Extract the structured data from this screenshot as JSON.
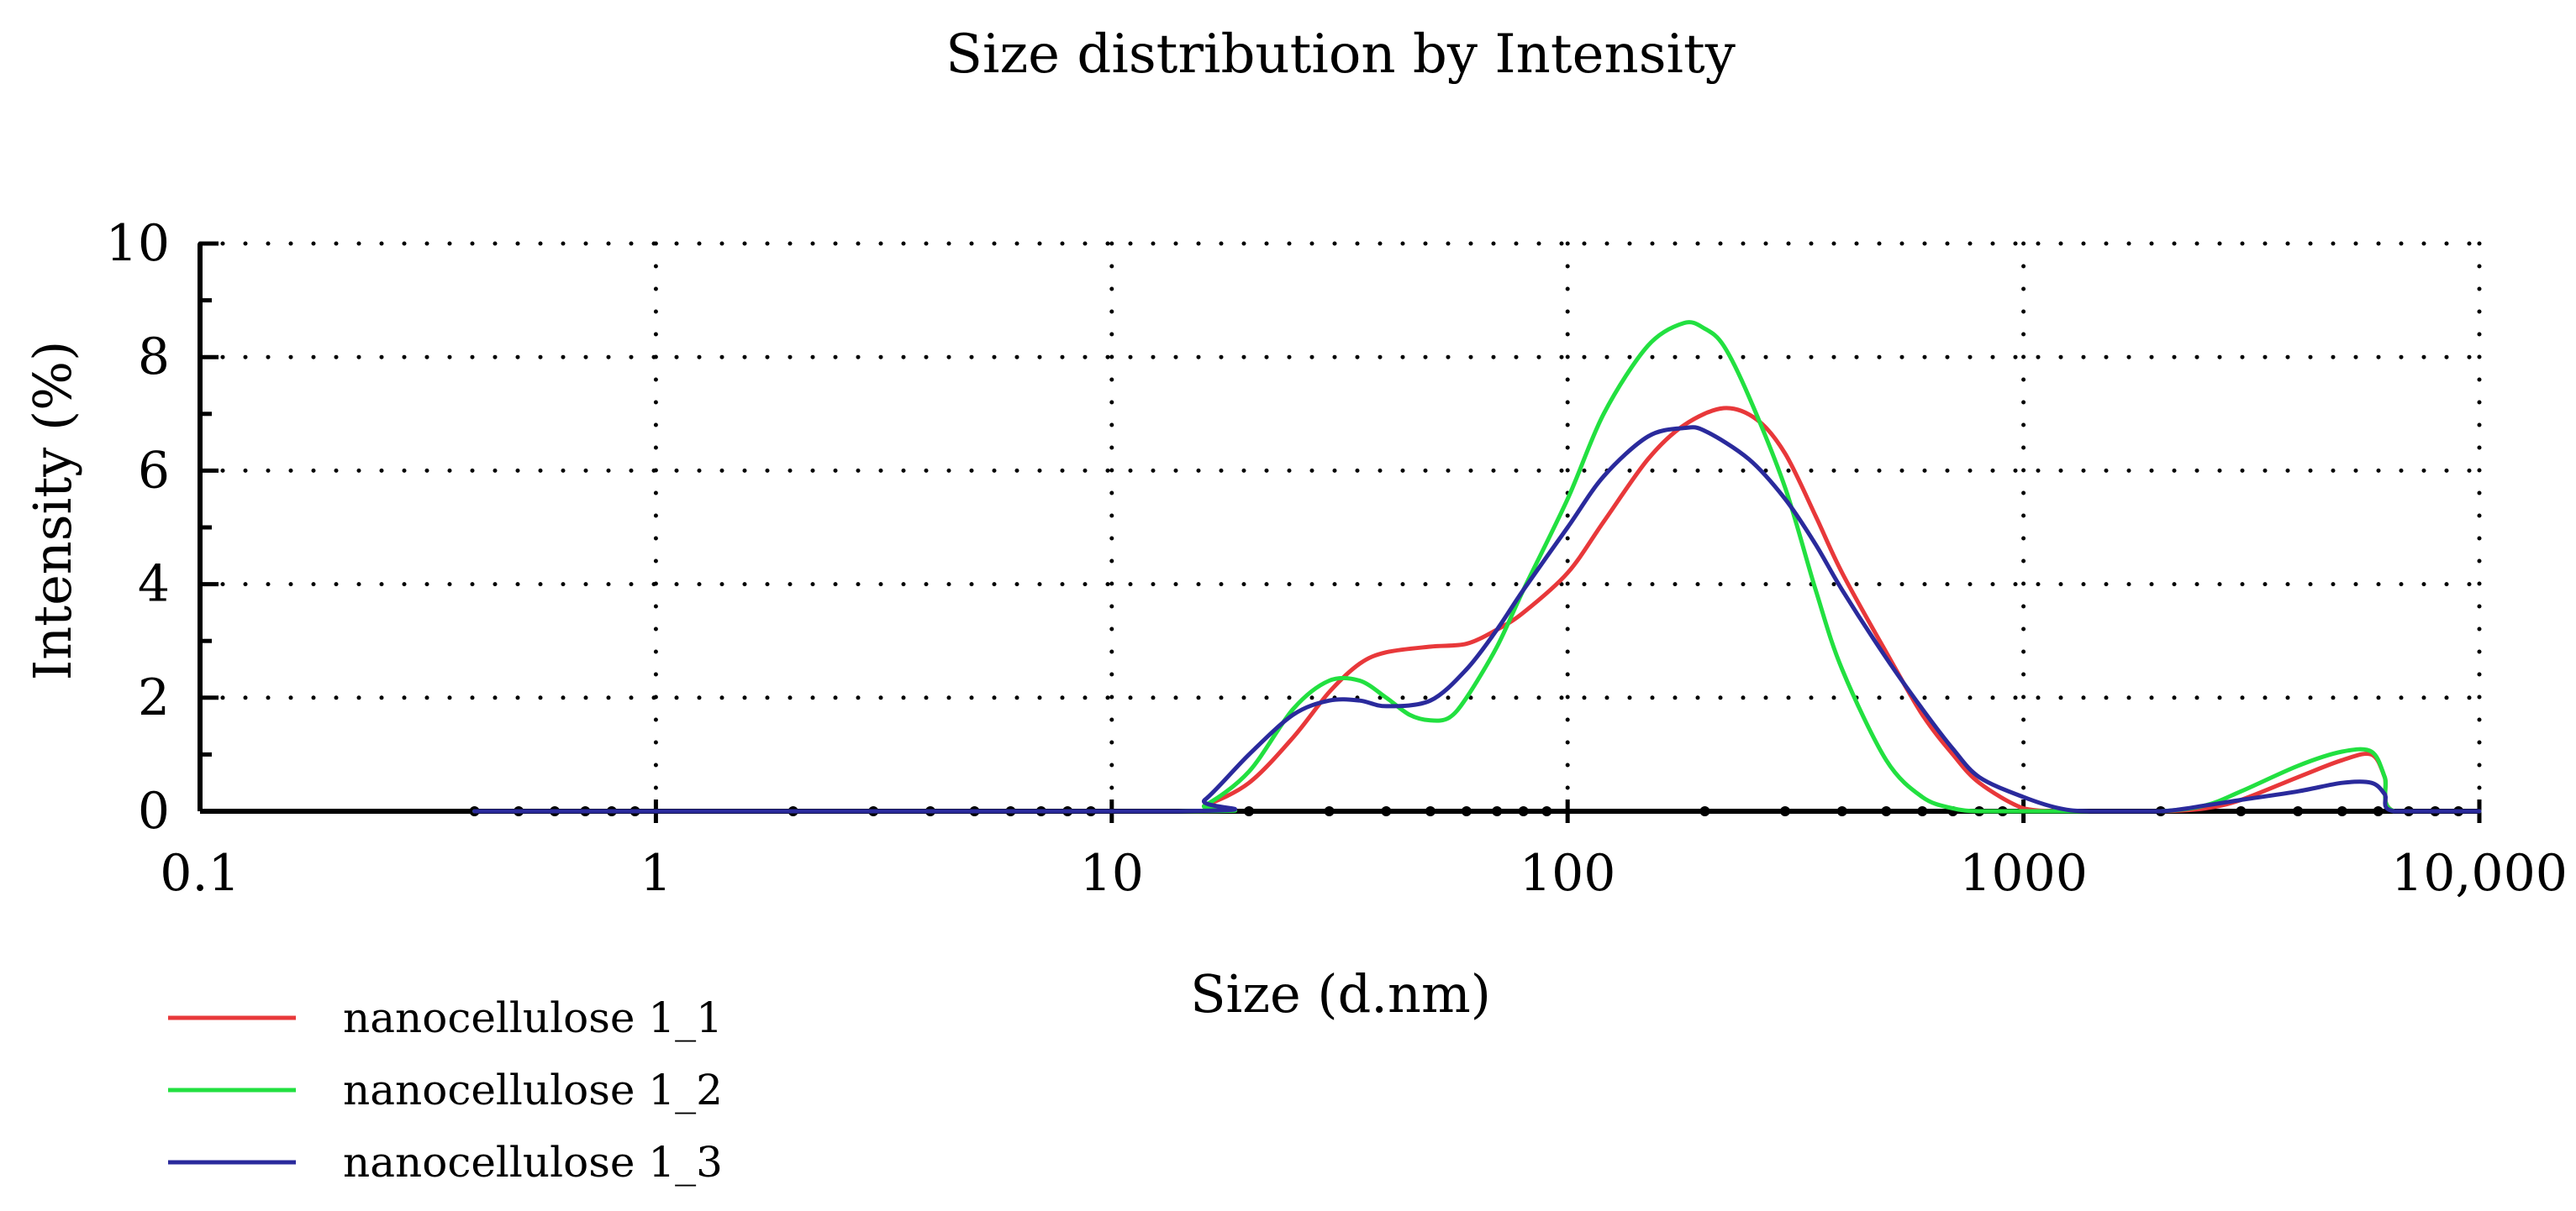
{
  "chart_data": {
    "type": "line",
    "title": "Size distribution by Intensity",
    "xlabel": "Size (d.nm)",
    "ylabel": "Intensity (%)",
    "x_scale": "log",
    "xlim": [
      0.1,
      10000
    ],
    "ylim": [
      0,
      10
    ],
    "grid": true,
    "legend_position": "bottom-left",
    "x_ticks": [
      {
        "value": 0.1,
        "label": "0.1"
      },
      {
        "value": 1,
        "label": "1"
      },
      {
        "value": 10,
        "label": "10"
      },
      {
        "value": 100,
        "label": "100"
      },
      {
        "value": 1000,
        "label": "1000"
      },
      {
        "value": 10000,
        "label": "10,000"
      }
    ],
    "y_ticks": [
      {
        "value": 0,
        "label": "0"
      },
      {
        "value": 2,
        "label": "2"
      },
      {
        "value": 4,
        "label": "4"
      },
      {
        "value": 6,
        "label": "6"
      },
      {
        "value": 8,
        "label": "8"
      },
      {
        "value": 10,
        "label": "10"
      }
    ],
    "baseline_start": 0.4,
    "series": [
      {
        "name": "nanocellulose 1_1",
        "color": "#e8383a",
        "x": [
          0.4,
          14,
          16,
          20,
          25,
          30,
          35,
          40,
          50,
          60,
          70,
          80,
          100,
          120,
          150,
          180,
          220,
          260,
          300,
          350,
          400,
          500,
          600,
          700,
          800,
          1000,
          1200,
          1500,
          2000,
          2500,
          3000,
          4000,
          5000,
          5800,
          6200,
          6500,
          10000
        ],
        "y": [
          0,
          0,
          0.1,
          0.5,
          1.3,
          2.1,
          2.6,
          2.8,
          2.9,
          2.95,
          3.2,
          3.5,
          4.2,
          5.1,
          6.2,
          6.8,
          7.1,
          6.9,
          6.3,
          5.2,
          4.2,
          2.8,
          1.7,
          1.0,
          0.5,
          0.05,
          0,
          0,
          0,
          0.05,
          0.2,
          0.6,
          0.9,
          1.0,
          0.6,
          0,
          0
        ]
      },
      {
        "name": "nanocellulose 1_2",
        "color": "#22e040",
        "x": [
          0.4,
          14,
          16,
          20,
          25,
          30,
          35,
          40,
          45,
          50,
          55,
          60,
          70,
          80,
          100,
          120,
          150,
          180,
          200,
          220,
          250,
          300,
          350,
          400,
          500,
          600,
          700,
          800,
          1000,
          1500,
          2000,
          2500,
          3000,
          4000,
          5000,
          5800,
          6200,
          6500,
          10000
        ],
        "y": [
          0,
          0,
          0.1,
          0.7,
          1.8,
          2.3,
          2.3,
          2.0,
          1.7,
          1.6,
          1.65,
          2.0,
          2.9,
          3.9,
          5.5,
          7.0,
          8.2,
          8.6,
          8.5,
          8.2,
          7.3,
          5.7,
          3.9,
          2.5,
          0.9,
          0.25,
          0.05,
          0,
          0,
          0,
          0,
          0.1,
          0.35,
          0.8,
          1.05,
          1.05,
          0.6,
          0,
          0
        ]
      },
      {
        "name": "nanocellulose 1_3",
        "color": "#2a2a9c",
        "x": [
          0.4,
          14,
          16,
          20,
          25,
          30,
          35,
          40,
          50,
          60,
          70,
          80,
          100,
          120,
          150,
          180,
          200,
          250,
          300,
          350,
          400,
          500,
          600,
          700,
          800,
          1000,
          1200,
          1400,
          2000,
          2500,
          3000,
          4000,
          5000,
          5800,
          6200,
          6500,
          10000
        ],
        "y": [
          0,
          0,
          0.2,
          1.0,
          1.7,
          1.95,
          1.95,
          1.85,
          1.95,
          2.5,
          3.2,
          3.9,
          5.0,
          5.9,
          6.6,
          6.75,
          6.7,
          6.2,
          5.5,
          4.7,
          3.9,
          2.7,
          1.8,
          1.1,
          0.6,
          0.25,
          0.05,
          0,
          0,
          0.1,
          0.2,
          0.35,
          0.5,
          0.5,
          0.3,
          0,
          0
        ]
      }
    ]
  }
}
